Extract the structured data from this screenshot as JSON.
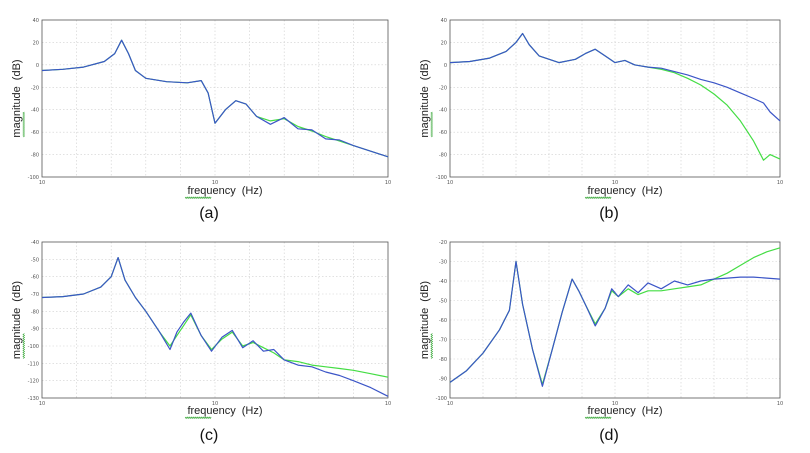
{
  "chart_data": [
    {
      "type": "line",
      "caption": "(a)",
      "xlabel_name": "frequency",
      "xlabel_unit": "(Hz)",
      "ylabel_name": "magnitude",
      "ylabel_unit": "(dB)",
      "x_ticks": [
        "10",
        "10",
        "10"
      ],
      "y_ticks": [
        "40",
        "20",
        "0",
        "-20",
        "-40",
        "-60",
        "-80",
        "-100"
      ],
      "ylim": [
        -100,
        40
      ],
      "grid": true,
      "series": [
        {
          "color": "#44dd44",
          "x": [
            0,
            0.06,
            0.12,
            0.18,
            0.21,
            0.23,
            0.25,
            0.27,
            0.3,
            0.36,
            0.42,
            0.46,
            0.48,
            0.5,
            0.53,
            0.56,
            0.59,
            0.62,
            0.66,
            0.7,
            0.74,
            0.78,
            0.82,
            0.86,
            0.9,
            0.95,
            1
          ],
          "y": [
            -5,
            -4,
            -2,
            3,
            10,
            22,
            10,
            -5,
            -12,
            -15,
            -16,
            -14,
            -25,
            -52,
            -40,
            -32,
            -35,
            -46,
            -50,
            -48,
            -55,
            -59,
            -64,
            -68,
            -72,
            -77,
            -82
          ]
        },
        {
          "color": "#3b55c7",
          "x": [
            0,
            0.06,
            0.12,
            0.18,
            0.21,
            0.23,
            0.25,
            0.27,
            0.3,
            0.36,
            0.42,
            0.46,
            0.48,
            0.5,
            0.53,
            0.56,
            0.59,
            0.62,
            0.66,
            0.7,
            0.74,
            0.78,
            0.82,
            0.86,
            0.9,
            0.95,
            1
          ],
          "y": [
            -5,
            -4,
            -2,
            3,
            10,
            22,
            10,
            -5,
            -12,
            -15,
            -16,
            -14,
            -25,
            -52,
            -40,
            -32,
            -35,
            -46,
            -53,
            -47,
            -57,
            -58,
            -66,
            -67,
            -72,
            -77,
            -82
          ]
        }
      ]
    },
    {
      "type": "line",
      "caption": "(b)",
      "xlabel_name": "frequency",
      "xlabel_unit": "(Hz)",
      "ylabel_name": "magnitude",
      "ylabel_unit": "(dB)",
      "x_ticks": [
        "10",
        "10",
        "10"
      ],
      "y_ticks": [
        "40",
        "20",
        "0",
        "-20",
        "-40",
        "-60",
        "-80",
        "-100"
      ],
      "ylim": [
        -100,
        40
      ],
      "grid": true,
      "series": [
        {
          "color": "#44dd44",
          "x": [
            0,
            0.06,
            0.12,
            0.17,
            0.2,
            0.22,
            0.24,
            0.27,
            0.33,
            0.38,
            0.41,
            0.44,
            0.47,
            0.5,
            0.53,
            0.56,
            0.6,
            0.64,
            0.68,
            0.72,
            0.76,
            0.8,
            0.84,
            0.88,
            0.92,
            0.95,
            0.97,
            1
          ],
          "y": [
            2,
            3,
            6,
            12,
            20,
            28,
            18,
            8,
            2,
            5,
            10,
            14,
            8,
            2,
            4,
            0,
            -2,
            -4,
            -7,
            -12,
            -18,
            -26,
            -36,
            -50,
            -68,
            -85,
            -80,
            -84
          ]
        },
        {
          "color": "#3b55c7",
          "x": [
            0,
            0.06,
            0.12,
            0.17,
            0.2,
            0.22,
            0.24,
            0.27,
            0.33,
            0.38,
            0.41,
            0.44,
            0.47,
            0.5,
            0.53,
            0.56,
            0.6,
            0.64,
            0.68,
            0.72,
            0.76,
            0.8,
            0.84,
            0.88,
            0.92,
            0.95,
            0.97,
            1
          ],
          "y": [
            2,
            3,
            6,
            12,
            20,
            28,
            18,
            8,
            2,
            5,
            10,
            14,
            8,
            2,
            4,
            0,
            -2,
            -3,
            -6,
            -9,
            -13,
            -16,
            -20,
            -25,
            -30,
            -34,
            -42,
            -50
          ]
        }
      ]
    },
    {
      "type": "line",
      "caption": "(c)",
      "xlabel_name": "frequency",
      "xlabel_unit": "(Hz)",
      "ylabel_name": "magnitude",
      "ylabel_unit": "(dB)",
      "x_ticks": [
        "10",
        "10",
        "10"
      ],
      "y_ticks": [
        "-40",
        "-50",
        "-60",
        "-70",
        "-80",
        "-90",
        "-100",
        "-110",
        "-120",
        "-130"
      ],
      "ylim": [
        -130,
        -40
      ],
      "grid": true,
      "series": [
        {
          "color": "#44dd44",
          "x": [
            0,
            0.06,
            0.12,
            0.17,
            0.2,
            0.22,
            0.24,
            0.27,
            0.3,
            0.34,
            0.37,
            0.39,
            0.41,
            0.43,
            0.46,
            0.49,
            0.52,
            0.55,
            0.58,
            0.61,
            0.64,
            0.67,
            0.7,
            0.74,
            0.78,
            0.82,
            0.86,
            0.9,
            0.95,
            1
          ],
          "y": [
            -72,
            -71.5,
            -70,
            -66,
            -60,
            -49,
            -62,
            -72,
            -80,
            -92,
            -100,
            -94,
            -88,
            -82,
            -94,
            -102,
            -96,
            -92,
            -100,
            -98,
            -101,
            -104,
            -108,
            -109,
            -111,
            -112,
            -113,
            -114,
            -116,
            -118
          ]
        },
        {
          "color": "#3b55c7",
          "x": [
            0,
            0.06,
            0.12,
            0.17,
            0.2,
            0.22,
            0.24,
            0.27,
            0.3,
            0.34,
            0.37,
            0.39,
            0.41,
            0.43,
            0.46,
            0.49,
            0.52,
            0.55,
            0.58,
            0.61,
            0.64,
            0.67,
            0.7,
            0.74,
            0.78,
            0.82,
            0.86,
            0.9,
            0.95,
            1
          ],
          "y": [
            -72,
            -71.5,
            -70,
            -66,
            -60,
            -49,
            -62,
            -72,
            -80,
            -92,
            -102,
            -92,
            -86,
            -81,
            -94,
            -103,
            -95,
            -91,
            -101,
            -97,
            -103,
            -102,
            -108,
            -111,
            -112,
            -115,
            -117,
            -120,
            -124,
            -129
          ]
        }
      ]
    },
    {
      "type": "line",
      "caption": "(d)",
      "xlabel_name": "frequency",
      "xlabel_unit": "(Hz)",
      "ylabel_name": "magnitude",
      "ylabel_unit": "(dB)",
      "x_ticks": [
        "10",
        "10",
        "10"
      ],
      "y_ticks": [
        "-20",
        "-30",
        "-40",
        "-50",
        "-60",
        "-70",
        "-80",
        "-90",
        "-100"
      ],
      "ylim": [
        -100,
        -20
      ],
      "grid": true,
      "series": [
        {
          "color": "#44dd44",
          "x": [
            0,
            0.05,
            0.1,
            0.15,
            0.18,
            0.2,
            0.22,
            0.25,
            0.28,
            0.31,
            0.34,
            0.37,
            0.39,
            0.41,
            0.44,
            0.47,
            0.49,
            0.51,
            0.54,
            0.57,
            0.6,
            0.64,
            0.68,
            0.72,
            0.76,
            0.8,
            0.84,
            0.88,
            0.92,
            0.96,
            1
          ],
          "y": [
            -92,
            -86,
            -77,
            -65,
            -55,
            -30,
            -52,
            -75,
            -93,
            -75,
            -56,
            -39,
            -45,
            -52,
            -62,
            -54,
            -45,
            -48,
            -44,
            -47,
            -45,
            -45,
            -44,
            -43,
            -42,
            -39,
            -36,
            -32,
            -28,
            -25,
            -23
          ]
        },
        {
          "color": "#3b55c7",
          "x": [
            0,
            0.05,
            0.1,
            0.15,
            0.18,
            0.2,
            0.22,
            0.25,
            0.28,
            0.31,
            0.34,
            0.37,
            0.39,
            0.41,
            0.44,
            0.47,
            0.49,
            0.51,
            0.54,
            0.57,
            0.6,
            0.64,
            0.68,
            0.72,
            0.76,
            0.8,
            0.84,
            0.88,
            0.92,
            0.96,
            1
          ],
          "y": [
            -92,
            -86,
            -77,
            -65,
            -55,
            -30,
            -52,
            -75,
            -94,
            -75,
            -56,
            -39,
            -45,
            -52,
            -63,
            -54,
            -44,
            -48,
            -42,
            -46,
            -41,
            -44,
            -40,
            -42,
            -40,
            -39,
            -38.5,
            -38,
            -38,
            -38.5,
            -39
          ]
        }
      ]
    }
  ]
}
